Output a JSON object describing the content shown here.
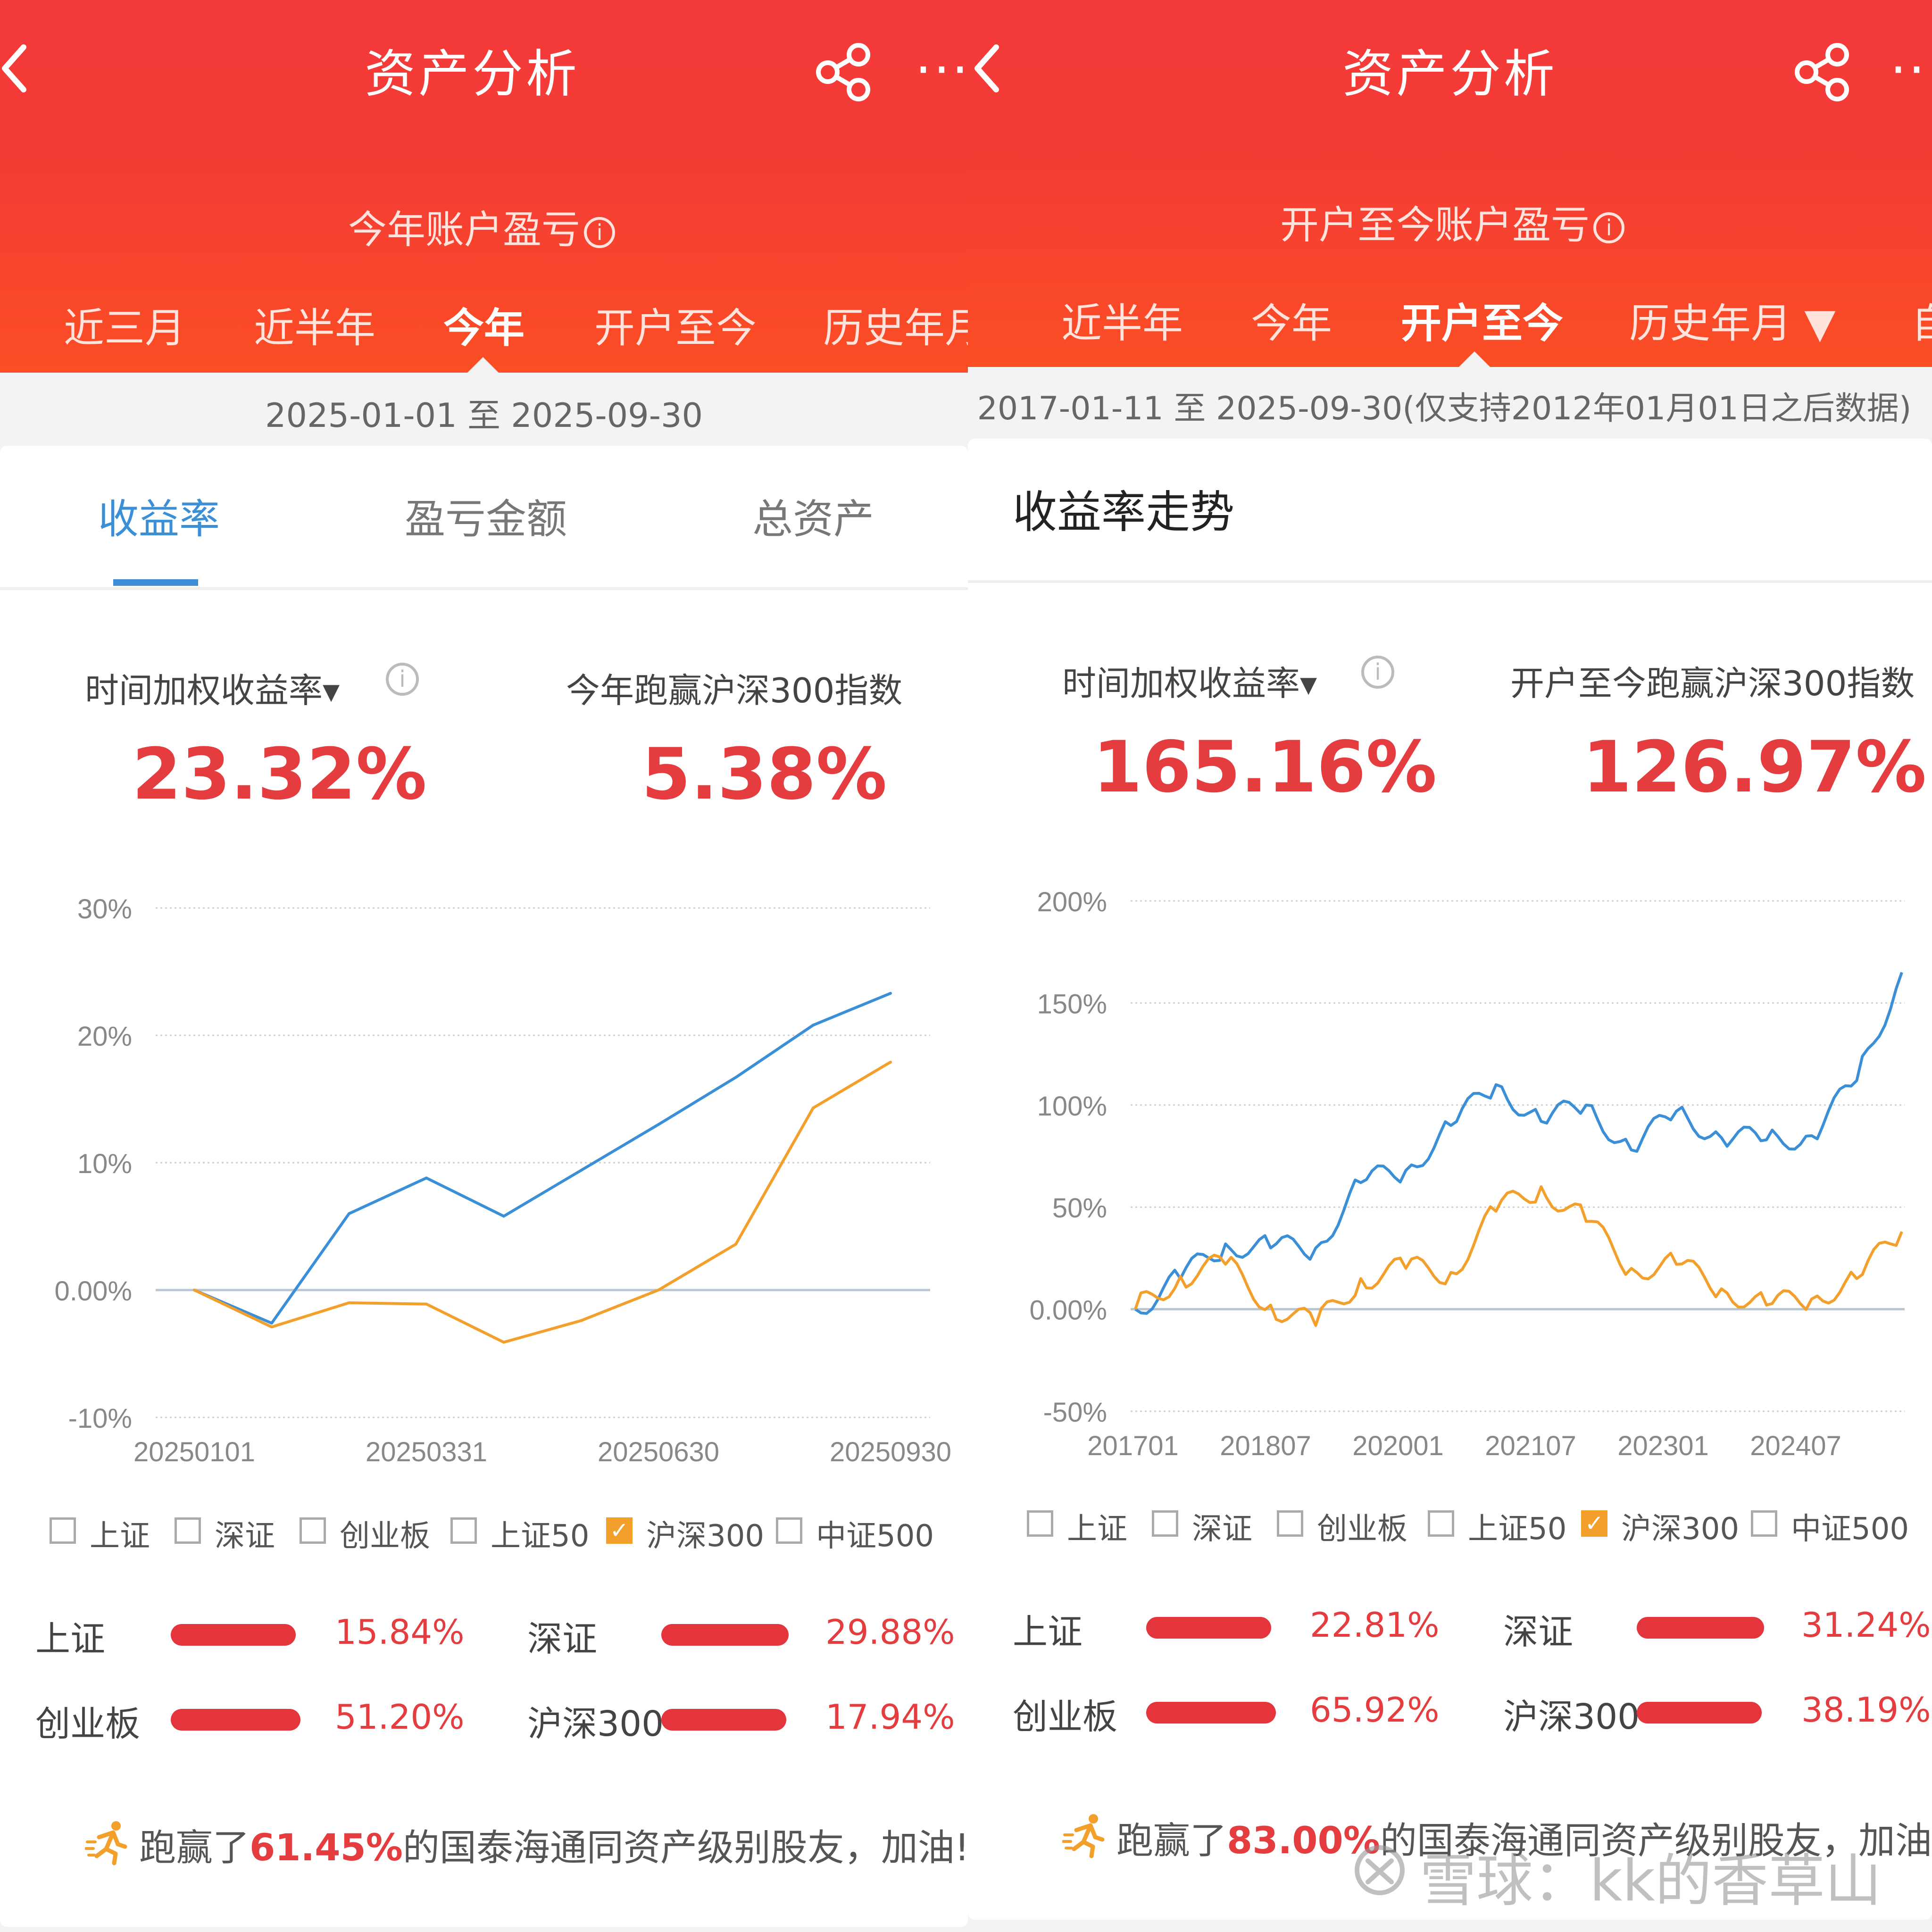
{
  "left": {
    "title": "资产分析",
    "subtitle": "今年账户盈亏",
    "period_tabs": [
      "近三月",
      "近半年",
      "今年",
      "开户至今",
      "历史年月"
    ],
    "active_tab": "今年",
    "date_range": "2025-01-01 至 2025-09-30",
    "sub_tabs": [
      "收益率",
      "盈亏金额",
      "总资产"
    ],
    "metric_label": "时间加权收益率▾",
    "metric_value": "23.32%",
    "beat_label": "今年跑赢沪深300指数",
    "beat_value": "5.38%",
    "legend": [
      "上证",
      "深证",
      "创业板",
      "上证50",
      "沪深300",
      "中证500"
    ],
    "legend_checked": "沪深300",
    "index_returns": [
      {
        "name": "上证",
        "value": "15.84%"
      },
      {
        "name": "深证",
        "value": "29.88%"
      },
      {
        "name": "创业板",
        "value": "51.20%"
      },
      {
        "name": "沪深300",
        "value": "17.94%"
      }
    ],
    "footer_prefix": "跑赢了",
    "footer_pct": "61.45%",
    "footer_suffix": "的国泰海通同资产级别股友，加油!"
  },
  "right": {
    "title": "资产分析",
    "subtitle": "开户至今账户盈亏",
    "period_tabs": [
      "近半年",
      "今年",
      "开户至今",
      "历史年月 ▼",
      "自"
    ],
    "active_tab": "开户至今",
    "date_range": "2017-01-11 至 2025-09-30(仅支持2012年01月01日之后数据)",
    "section_title": "收益率走势",
    "metric_label": "时间加权收益率▾",
    "metric_value": "165.16%",
    "beat_label": "开户至今跑赢沪深300指数",
    "beat_value": "126.97%",
    "legend": [
      "上证",
      "深证",
      "创业板",
      "上证50",
      "沪深300",
      "中证500"
    ],
    "legend_checked": "沪深300",
    "index_returns": [
      {
        "name": "上证",
        "value": "22.81%"
      },
      {
        "name": "深证",
        "value": "31.24%"
      },
      {
        "name": "创业板",
        "value": "65.92%"
      },
      {
        "name": "沪深300",
        "value": "38.19%"
      }
    ],
    "footer_prefix": "跑赢了",
    "footer_pct": "83.00%",
    "footer_suffix": "的国泰海通同资产级别股友，加油!"
  },
  "watermark": "雪球：kk的香草山",
  "colors": {
    "header": "#f43c35",
    "account_line": "#3a8fd6",
    "index_line": "#f2a02b",
    "value_red": "#e43c3f"
  },
  "chart_data": [
    {
      "type": "line",
      "yticks": [
        "30%",
        "20%",
        "10%",
        "0.00%",
        "-10%"
      ],
      "ylim": [
        -10,
        30
      ],
      "xticks": [
        "20250101",
        "20250331",
        "20250630",
        "20250930"
      ],
      "x": [
        "20250101",
        "20250131",
        "20250228",
        "20250331",
        "20250430",
        "20250531",
        "20250630",
        "20250731",
        "20250831",
        "20250930"
      ],
      "series": [
        {
          "values": [
            0,
            -2.6,
            6.0,
            8.8,
            5.8,
            9.4,
            13.0,
            16.7,
            20.8,
            23.3
          ]
        },
        {
          "values": [
            0,
            -2.9,
            -1.0,
            -1.1,
            -4.1,
            -2.4,
            0.0,
            3.6,
            14.3,
            17.9
          ]
        }
      ]
    },
    {
      "type": "line",
      "yticks": [
        "200%",
        "150%",
        "100%",
        "50%",
        "0.00%",
        "-50%"
      ],
      "ylim": [
        -50,
        200
      ],
      "xticks": [
        "201701",
        "201807",
        "202001",
        "202107",
        "202301",
        "202407"
      ],
      "x": [
        "201701",
        "201707",
        "201801",
        "201807",
        "201901",
        "201907",
        "202001",
        "202007",
        "202101",
        "202107",
        "202201",
        "202207",
        "202301",
        "202307",
        "202401",
        "202407",
        "202501",
        "202509"
      ],
      "series": [
        {
          "values": [
            0,
            15,
            32,
            30,
            30,
            62,
            68,
            90,
            110,
            92,
            100,
            78,
            97,
            84,
            83,
            85,
            112,
            165
          ]
        },
        {
          "values": [
            0,
            16,
            22,
            2,
            -8,
            15,
            20,
            18,
            48,
            60,
            43,
            20,
            22,
            10,
            2,
            5,
            15,
            38
          ]
        }
      ]
    }
  ]
}
